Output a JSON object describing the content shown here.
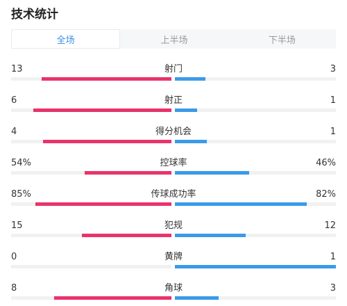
{
  "header": {
    "title": "技术统计"
  },
  "tabs": [
    {
      "label": "全场",
      "active": true
    },
    {
      "label": "上半场",
      "active": false
    },
    {
      "label": "下半场",
      "active": false
    }
  ],
  "colors": {
    "home": "#e8336b",
    "away": "#3b9ae8",
    "accent": "#3d8ee6",
    "track": "#f0f1f3"
  },
  "stats": [
    {
      "label": "射门",
      "home": "13",
      "away": "3",
      "home_share": 0.81,
      "away_share": 0.19
    },
    {
      "label": "射正",
      "home": "6",
      "away": "1",
      "home_share": 0.86,
      "away_share": 0.14
    },
    {
      "label": "得分机会",
      "home": "4",
      "away": "1",
      "home_share": 0.8,
      "away_share": 0.2
    },
    {
      "label": "控球率",
      "home": "54%",
      "away": "46%",
      "home_share": 0.54,
      "away_share": 0.46
    },
    {
      "label": "传球成功率",
      "home": "85%",
      "away": "82%",
      "home_share": 0.85,
      "away_share": 0.82
    },
    {
      "label": "犯规",
      "home": "15",
      "away": "12",
      "home_share": 0.56,
      "away_share": 0.44
    },
    {
      "label": "黄牌",
      "home": "0",
      "away": "1",
      "home_share": 0.0,
      "away_share": 1.0
    },
    {
      "label": "角球",
      "home": "8",
      "away": "3",
      "home_share": 0.73,
      "away_share": 0.27
    }
  ]
}
